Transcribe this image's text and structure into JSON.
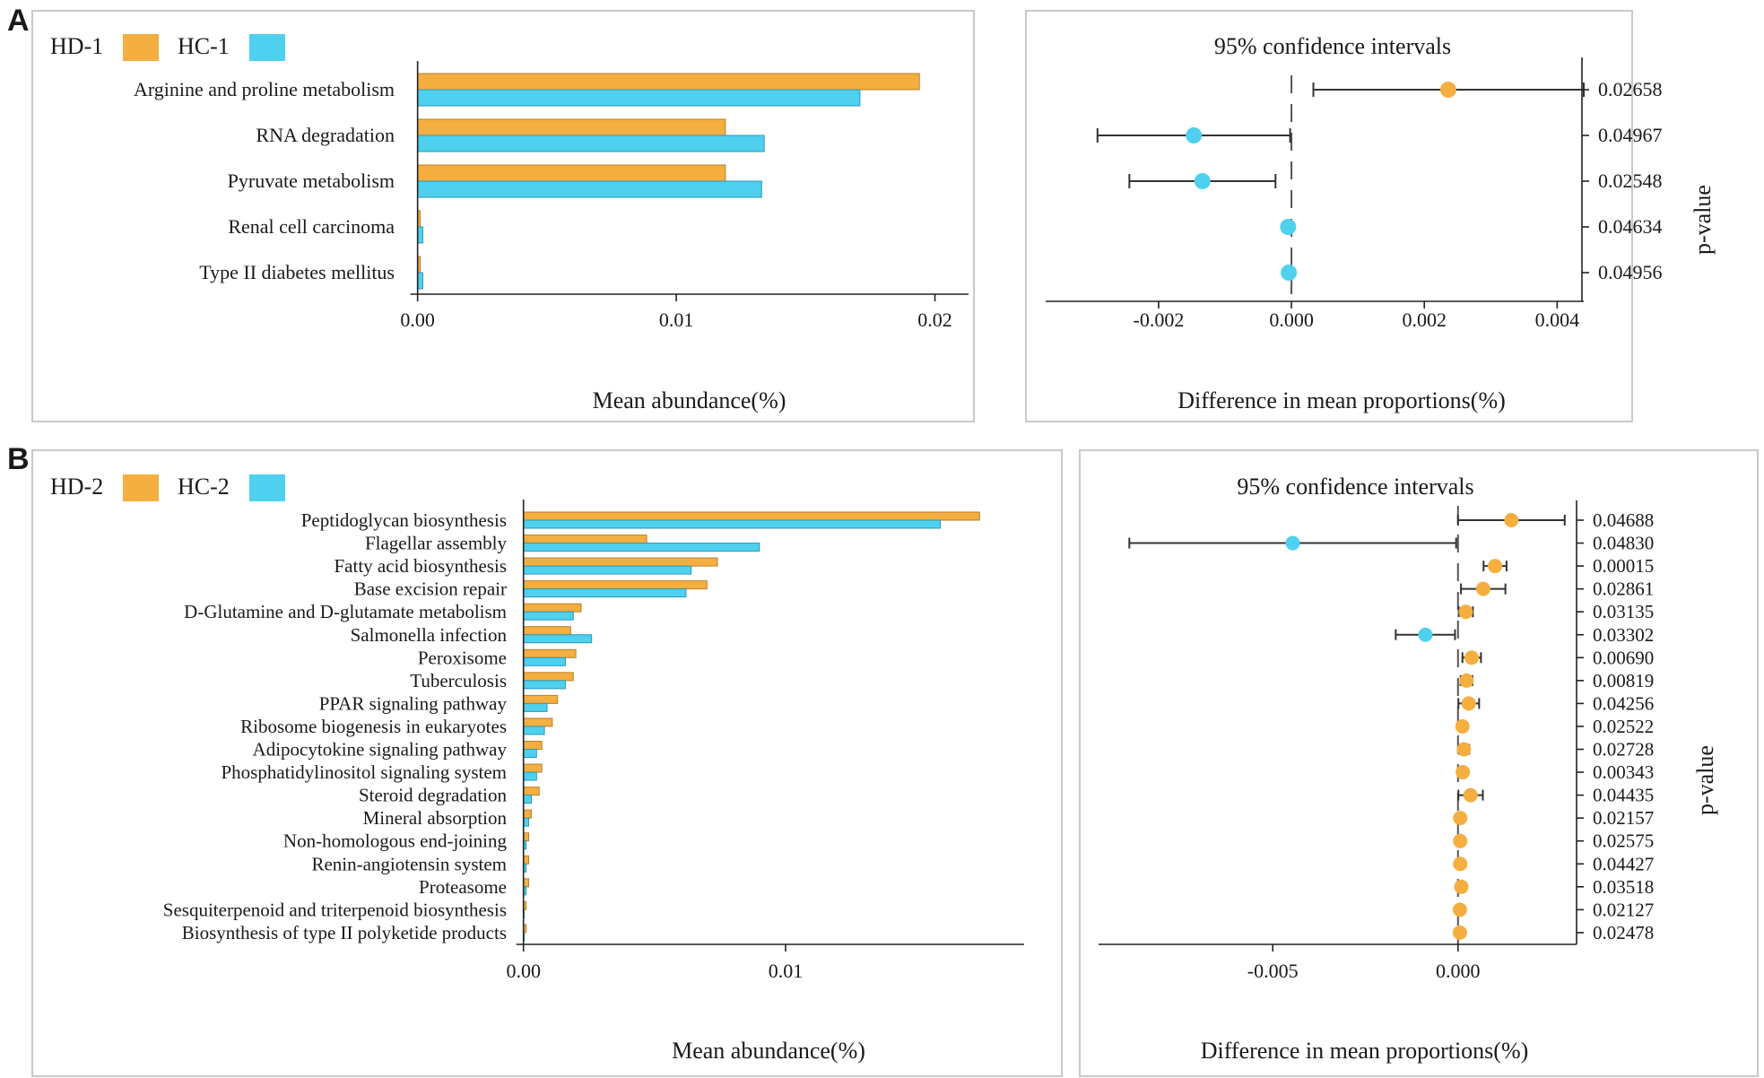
{
  "colors": {
    "hd": "#F5AE40",
    "hc": "#4FD0EE",
    "hd_edge": "#B87F2A",
    "hc_edge": "#2A98B8"
  },
  "chart_data": [
    {
      "id": "A",
      "panel_label": "A",
      "type": "bar",
      "orientation": "horizontal",
      "legend": [
        "HD-1",
        "HC-1"
      ],
      "categories": [
        "Arginine and proline metabolism",
        "RNA degradation",
        "Pyruvate metabolism",
        "Renal cell carcinoma",
        "Type II diabetes mellitus"
      ],
      "series": [
        {
          "name": "HD-1",
          "values": [
            0.0194,
            0.0119,
            0.0119,
            0.0001,
            0.0001
          ]
        },
        {
          "name": "HC-1",
          "values": [
            0.0171,
            0.0134,
            0.0133,
            0.0002,
            0.0002
          ]
        }
      ],
      "xlim": [
        -0.0003,
        0.0213
      ],
      "xticks": [
        0.0,
        0.01,
        0.02
      ],
      "xtick_labels": [
        "0.00",
        "0.01",
        "0.02"
      ],
      "xlabel": "Mean abundance(%)",
      "ci": {
        "title": "95% confidence intervals",
        "xlabel": "Difference in mean proportions(%)",
        "ylabel": "p-value",
        "xlim": [
          -0.0037,
          0.0044
        ],
        "xticks": [
          -0.002,
          0.0,
          0.002,
          0.004
        ],
        "xtick_labels": [
          "-0.002",
          "0.000",
          "0.002",
          "0.004"
        ],
        "points": [
          {
            "diff": 0.00236,
            "low": 0.00033,
            "high": 0.0044,
            "group": "HD-1",
            "p": "0.02658"
          },
          {
            "diff": -0.00147,
            "low": -0.00292,
            "high": -2e-05,
            "group": "HC-1",
            "p": "0.04967"
          },
          {
            "diff": -0.00134,
            "low": -0.00244,
            "high": -0.00024,
            "group": "HC-1",
            "p": "0.02548"
          },
          {
            "diff": -5e-05,
            "low": -9e-05,
            "high": -1e-05,
            "group": "HC-1",
            "p": "0.04634"
          },
          {
            "diff": -4e-05,
            "low": -8e-05,
            "high": -1e-05,
            "group": "HC-1",
            "p": "0.04956"
          }
        ]
      }
    },
    {
      "id": "B",
      "panel_label": "B",
      "type": "bar",
      "orientation": "horizontal",
      "legend": [
        "HD-2",
        "HC-2"
      ],
      "categories": [
        "Peptidoglycan biosynthesis",
        "Flagellar assembly",
        "Fatty acid biosynthesis",
        "Base excision repair",
        "D-Glutamine and D-glutamate metabolism",
        "Salmonella infection",
        "Peroxisome",
        "Tuberculosis",
        "PPAR signaling pathway",
        "Ribosome biogenesis in eukaryotes",
        "Adipocytokine signaling pathway",
        "Phosphatidylinositol signaling system",
        "Steroid degradation",
        "Mineral absorption",
        "Non-homologous end-joining",
        "Renin-angiotensin system",
        "Proteasome",
        "Sesquiterpenoid and triterpenoid biosynthesis",
        "Biosynthesis of type II polyketide products"
      ],
      "series": [
        {
          "name": "HD-2",
          "values": [
            0.0174,
            0.0047,
            0.0074,
            0.007,
            0.0022,
            0.0018,
            0.002,
            0.0019,
            0.0013,
            0.0011,
            0.0007,
            0.0007,
            0.0006,
            0.0003,
            0.0002,
            0.0002,
            0.0002,
            0.0001,
            0.0001
          ]
        },
        {
          "name": "HC-2",
          "values": [
            0.0159,
            0.009,
            0.0064,
            0.0062,
            0.0019,
            0.0026,
            0.0016,
            0.0016,
            0.0009,
            0.0008,
            0.0005,
            0.0005,
            0.0003,
            0.0002,
            0.0001,
            0.0001,
            0.0001,
            0.0,
            0.0
          ]
        }
      ],
      "xlim": [
        -0.0004,
        0.0191
      ],
      "xticks": [
        0.0,
        0.01
      ],
      "xtick_labels": [
        "0.00",
        "0.01"
      ],
      "xlabel": "Mean abundance(%)",
      "ci": {
        "title": "95% confidence intervals",
        "xlabel": "Difference in mean proportions(%)",
        "ylabel": "p-value",
        "xlim": [
          -0.0097,
          0.0032
        ],
        "xticks": [
          -0.005,
          0.0
        ],
        "xtick_labels": [
          "-0.005",
          "0.000"
        ],
        "points": [
          {
            "diff": 0.00144,
            "low": 0.0,
            "high": 0.00288,
            "group": "HD-2",
            "p": "0.04688"
          },
          {
            "diff": -0.00446,
            "low": -0.00887,
            "high": -5e-05,
            "group": "HC-2",
            "p": "0.04830"
          },
          {
            "diff": 0.001,
            "low": 0.00069,
            "high": 0.00131,
            "group": "HD-2",
            "p": "0.00015"
          },
          {
            "diff": 0.00068,
            "low": 8e-05,
            "high": 0.00128,
            "group": "HD-2",
            "p": "0.02861"
          },
          {
            "diff": 0.00021,
            "low": 2e-05,
            "high": 0.0004,
            "group": "HD-2",
            "p": "0.03135"
          },
          {
            "diff": -0.00088,
            "low": -0.00168,
            "high": -8e-05,
            "group": "HC-2",
            "p": "0.03302"
          },
          {
            "diff": 0.00037,
            "low": 0.00012,
            "high": 0.00062,
            "group": "HD-2",
            "p": "0.00690"
          },
          {
            "diff": 0.00023,
            "low": 7e-05,
            "high": 0.00039,
            "group": "HD-2",
            "p": "0.00819"
          },
          {
            "diff": 0.00029,
            "low": 1e-05,
            "high": 0.00057,
            "group": "HD-2",
            "p": "0.04256"
          },
          {
            "diff": 0.00012,
            "low": 2e-05,
            "high": 0.00022,
            "group": "HD-2",
            "p": "0.02522"
          },
          {
            "diff": 0.00016,
            "low": 2e-05,
            "high": 0.0003,
            "group": "HD-2",
            "p": "0.02728"
          },
          {
            "diff": 0.00013,
            "low": 4e-05,
            "high": 0.00022,
            "group": "HD-2",
            "p": "0.00343"
          },
          {
            "diff": 0.00034,
            "low": 1e-05,
            "high": 0.00067,
            "group": "HD-2",
            "p": "0.04435"
          },
          {
            "diff": 6e-05,
            "low": 1e-05,
            "high": 0.00011,
            "group": "HD-2",
            "p": "0.02157"
          },
          {
            "diff": 6e-05,
            "low": 1e-05,
            "high": 0.00011,
            "group": "HD-2",
            "p": "0.02575"
          },
          {
            "diff": 6e-05,
            "low": 1e-05,
            "high": 0.00011,
            "group": "HD-2",
            "p": "0.04427"
          },
          {
            "diff": 9e-05,
            "low": 2e-05,
            "high": 0.00016,
            "group": "HD-2",
            "p": "0.03518"
          },
          {
            "diff": 5e-05,
            "low": 1e-05,
            "high": 9e-05,
            "group": "HD-2",
            "p": "0.02127"
          },
          {
            "diff": 5e-05,
            "low": 1e-05,
            "high": 9e-05,
            "group": "HD-2",
            "p": "0.02478"
          }
        ]
      }
    }
  ]
}
